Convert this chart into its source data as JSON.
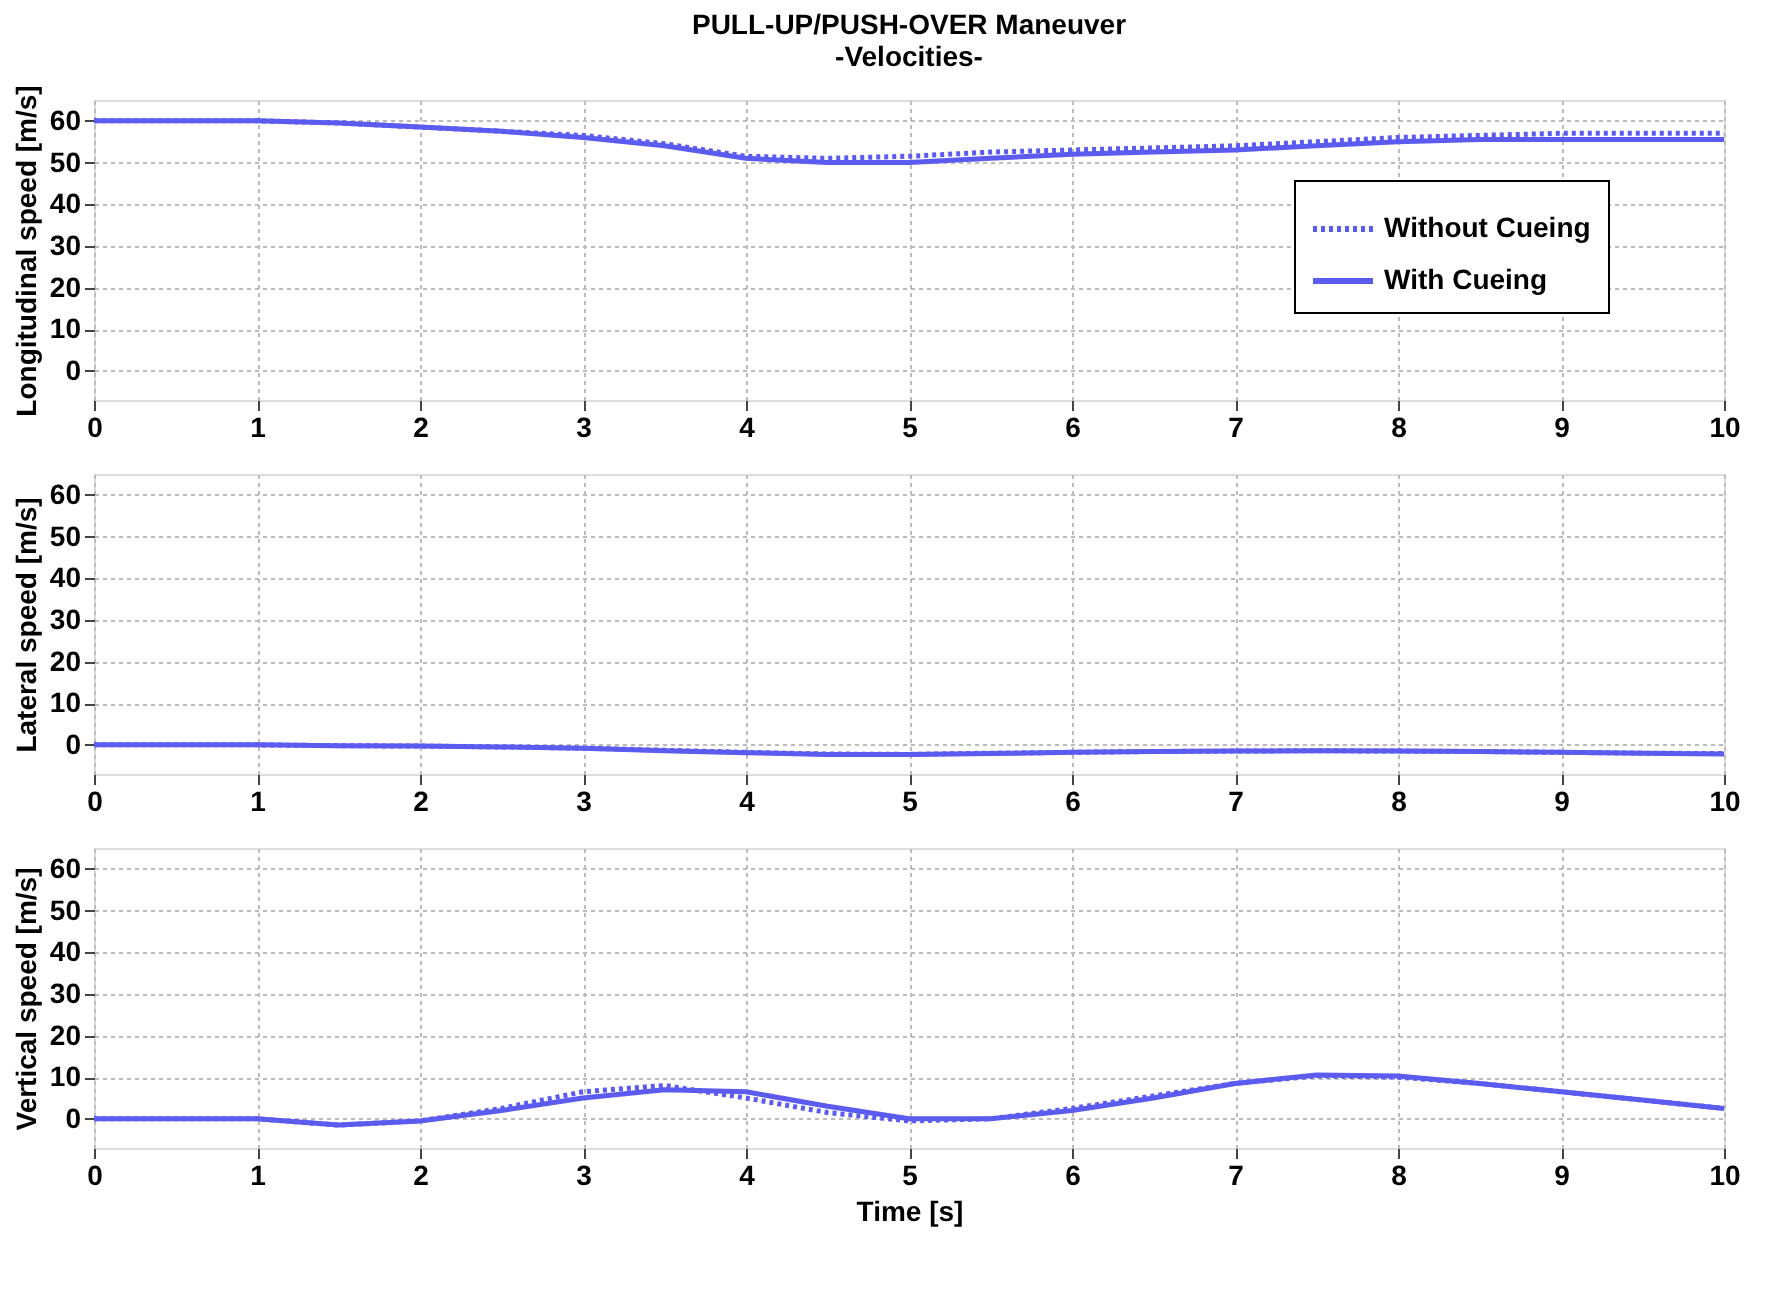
{
  "chart_data": [
    {
      "type": "line",
      "title": "PULL-UP/PUSH-OVER Maneuver",
      "subtitle": "-Velocities-",
      "ylabel": "Longitudinal speed [m/s]",
      "x": [
        0,
        0.5,
        1,
        1.5,
        2,
        2.5,
        3,
        3.5,
        4,
        4.5,
        5,
        5.5,
        6,
        6.5,
        7,
        7.5,
        8,
        8.5,
        9,
        9.5,
        10
      ],
      "xlim": [
        0,
        10
      ],
      "xticks": [
        0,
        1,
        2,
        3,
        4,
        5,
        6,
        7,
        8,
        9,
        10
      ],
      "ylim": [
        -7,
        65
      ],
      "yticks": [
        0,
        10,
        20,
        30,
        40,
        50,
        60
      ],
      "grid": true,
      "legend": "right",
      "marker": "none",
      "series": [
        {
          "name": "Without Cueing",
          "color": "#5b5bf0",
          "line_style": "dotted",
          "values": [
            60,
            60,
            60,
            59.5,
            58.5,
            57.5,
            56.5,
            54.5,
            51.5,
            51,
            51.5,
            52.5,
            53,
            53.5,
            54,
            55,
            56,
            56.5,
            57,
            57,
            57
          ]
        },
        {
          "name": "With Cueing",
          "color": "#5b5bf0",
          "line_style": "solid",
          "values": [
            60,
            60,
            60,
            59.5,
            58.5,
            57.5,
            56,
            54,
            51,
            50,
            50,
            51,
            52,
            52.5,
            53,
            54,
            55,
            55.5,
            55.5,
            55.5,
            55.5
          ]
        }
      ]
    },
    {
      "type": "line",
      "ylabel": "Lateral speed [m/s]",
      "x": [
        0,
        0.5,
        1,
        1.5,
        2,
        2.5,
        3,
        3.5,
        4,
        4.5,
        5,
        5.5,
        6,
        6.5,
        7,
        7.5,
        8,
        8.5,
        9,
        9.5,
        10
      ],
      "xlim": [
        0,
        10
      ],
      "xticks": [
        0,
        1,
        2,
        3,
        4,
        5,
        6,
        7,
        8,
        9,
        10
      ],
      "ylim": [
        -7,
        65
      ],
      "yticks": [
        0,
        10,
        20,
        30,
        40,
        50,
        60
      ],
      "grid": true,
      "marker": "none",
      "series": [
        {
          "color": "#5b5bf0",
          "line_style": "dotted",
          "values": [
            0,
            0,
            0,
            -0.2,
            -0.3,
            -0.5,
            -0.8,
            -1.3,
            -1.8,
            -2.2,
            -2.3,
            -2,
            -1.8,
            -1.6,
            -1.5,
            -1.4,
            -1.5,
            -1.6,
            -1.8,
            -2,
            -2.1
          ]
        },
        {
          "color": "#5b5bf0",
          "line_style": "solid",
          "values": [
            0,
            0,
            0,
            -0.2,
            -0.3,
            -0.5,
            -0.8,
            -1.4,
            -1.9,
            -2.3,
            -2.3,
            -2.1,
            -1.8,
            -1.6,
            -1.5,
            -1.4,
            -1.5,
            -1.6,
            -1.8,
            -2,
            -2.2
          ]
        }
      ]
    },
    {
      "type": "line",
      "ylabel": "Vertical speed [m/s]",
      "xlabel": "Time [s]",
      "x": [
        0,
        0.5,
        1,
        1.5,
        2,
        2.5,
        3,
        3.5,
        4,
        4.5,
        5,
        5.5,
        6,
        6.5,
        7,
        7.5,
        8,
        8.5,
        9,
        9.5,
        10
      ],
      "xlim": [
        0,
        10
      ],
      "xticks": [
        0,
        1,
        2,
        3,
        4,
        5,
        6,
        7,
        8,
        9,
        10
      ],
      "ylim": [
        -7,
        65
      ],
      "yticks": [
        0,
        10,
        20,
        30,
        40,
        50,
        60
      ],
      "grid": true,
      "marker": "none",
      "series": [
        {
          "color": "#5b5bf0",
          "line_style": "dotted",
          "values": [
            0,
            0,
            0,
            -1.5,
            -0.5,
            2.5,
            6.5,
            8,
            5,
            1.5,
            -0.5,
            0,
            2.5,
            5.5,
            8.5,
            10.3,
            10,
            8.5,
            6.5,
            4.5,
            2.5
          ]
        },
        {
          "color": "#5b5bf0",
          "line_style": "solid",
          "values": [
            0,
            0,
            0,
            -1.5,
            -0.5,
            2,
            5,
            7,
            6.5,
            3,
            0,
            0,
            2,
            5,
            8.5,
            10.5,
            10.3,
            8.5,
            6.5,
            4.5,
            2.5
          ]
        }
      ]
    }
  ]
}
